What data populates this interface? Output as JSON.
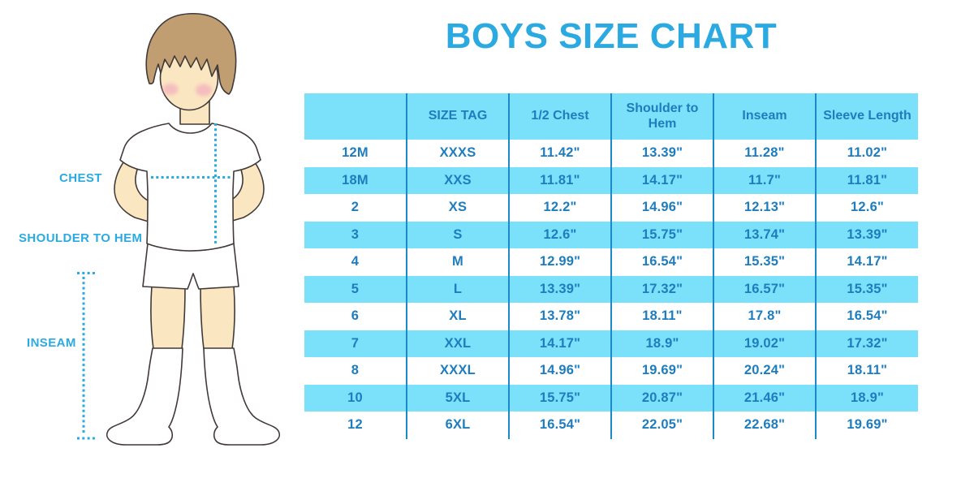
{
  "title": "BOYS SIZE CHART",
  "colors": {
    "accent_blue": "#2BAAE2",
    "row_band_cyan": "#7BE1FA",
    "table_text_blue": "#1E7DBE",
    "column_border_blue": "#1C89C9"
  },
  "diagram": {
    "labels": {
      "chest": "CHEST",
      "shoulder_to_hem": "SHOULDER TO HEM",
      "inseam": "INSEAM"
    }
  },
  "table": {
    "headers": [
      "",
      "SIZE TAG",
      "1/2 Chest",
      "Shoulder to Hem",
      "Inseam",
      "Sleeve Length"
    ],
    "rows": [
      [
        "12M",
        "XXXS",
        "11.42\"",
        "13.39\"",
        "11.28\"",
        "11.02\""
      ],
      [
        "18M",
        "XXS",
        "11.81\"",
        "14.17\"",
        "11.7\"",
        "11.81\""
      ],
      [
        "2",
        "XS",
        "12.2\"",
        "14.96\"",
        "12.13\"",
        "12.6\""
      ],
      [
        "3",
        "S",
        "12.6\"",
        "15.75\"",
        "13.74\"",
        "13.39\""
      ],
      [
        "4",
        "M",
        "12.99\"",
        "16.54\"",
        "15.35\"",
        "14.17\""
      ],
      [
        "5",
        "L",
        "13.39\"",
        "17.32\"",
        "16.57\"",
        "15.35\""
      ],
      [
        "6",
        "XL",
        "13.78\"",
        "18.11\"",
        "17.8\"",
        "16.54\""
      ],
      [
        "7",
        "XXL",
        "14.17\"",
        "18.9\"",
        "19.02\"",
        "17.32\""
      ],
      [
        "8",
        "XXXL",
        "14.96\"",
        "19.69\"",
        "20.24\"",
        "18.11\""
      ],
      [
        "10",
        "5XL",
        "15.75\"",
        "20.87\"",
        "21.46\"",
        "18.9\""
      ],
      [
        "12",
        "6XL",
        "16.54\"",
        "22.05\"",
        "22.68\"",
        "19.69\""
      ]
    ]
  }
}
